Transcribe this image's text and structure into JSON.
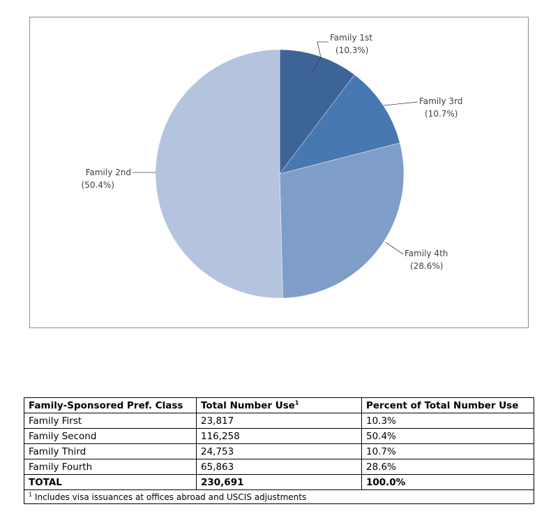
{
  "chart_data": {
    "type": "pie",
    "slices": [
      {
        "name": "Family 1st",
        "percent_label": "(10.3%)",
        "value": 10.3,
        "color": "#3d6496"
      },
      {
        "name": "Family 3rd",
        "percent_label": "(10.7%)",
        "value": 10.7,
        "color": "#4778b2"
      },
      {
        "name": "Family 4th",
        "percent_label": "(28.6%)",
        "value": 28.6,
        "color": "#7f9dc9"
      },
      {
        "name": "Family 2nd",
        "percent_label": "(50.4%)",
        "value": 50.4,
        "color": "#b4c3de"
      }
    ]
  },
  "table": {
    "headers": [
      "Family-Sponsored Pref. Class",
      "Total Number Use",
      "Percent of Total Number Use"
    ],
    "header_superscript": "1",
    "rows": [
      [
        "Family First",
        "23,817",
        "10.3%"
      ],
      [
        "Family Second",
        "116,258",
        "50.4%"
      ],
      [
        "Family Third",
        "24,753",
        "10.7%"
      ],
      [
        "Family Fourth",
        "65,863",
        "28.6%"
      ]
    ],
    "total_row": [
      "TOTAL",
      "230,691",
      "100.0%"
    ],
    "footnote_marker": "1",
    "footnote": "Includes visa issuances at offices abroad and USCIS adjustments"
  }
}
